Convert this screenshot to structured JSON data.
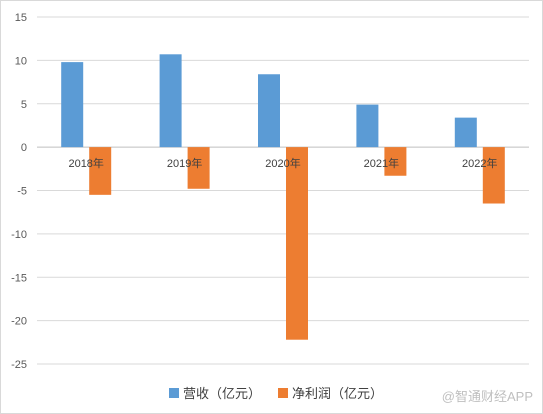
{
  "chart_data": {
    "type": "bar",
    "categories": [
      "2018年",
      "2019年",
      "2020年",
      "2021年",
      "2022年"
    ],
    "series": [
      {
        "name": "营收（亿元）",
        "values": [
          9.8,
          10.7,
          8.4,
          4.9,
          3.4
        ],
        "color": "#5b9bd5"
      },
      {
        "name": "净利润（亿元）",
        "values": [
          -5.5,
          -4.8,
          -22.2,
          -3.3,
          -6.5
        ],
        "color": "#ed7d31"
      }
    ],
    "yticks": [
      15,
      10,
      5,
      0,
      -5,
      -10,
      -15,
      -20,
      -25
    ],
    "ylim": [
      -25,
      15
    ],
    "grid": true,
    "legend": "bottom"
  },
  "watermark": "@智通财经APP"
}
